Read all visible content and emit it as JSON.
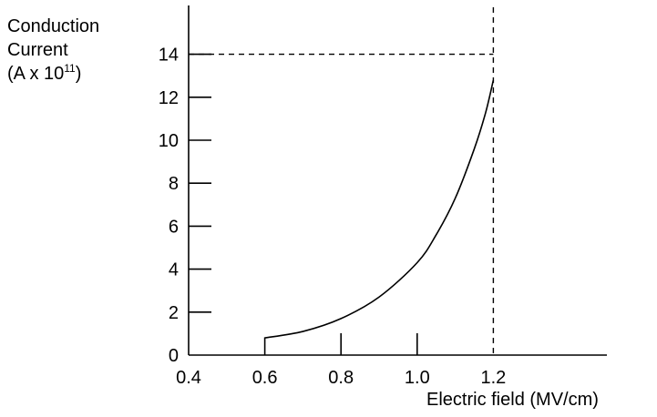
{
  "chart_data": {
    "type": "line",
    "ylabel_lines": [
      "Conduction",
      "Current"
    ],
    "ylabel_unit_prefix": "(A x 10",
    "ylabel_unit_exp": "11",
    "ylabel_unit_suffix": ")",
    "xlabel": "Electric field (MV/cm)",
    "x_ticks": [
      "0.4",
      "0.6",
      "0.8",
      "1.0",
      "1.2"
    ],
    "y_ticks": [
      "0",
      "2",
      "4",
      "6",
      "8",
      "10",
      "12",
      "14"
    ],
    "xlim": [
      0.4,
      1.5
    ],
    "ylim": [
      0,
      16
    ],
    "series": [
      {
        "x": [
          0.6,
          0.6,
          0.7,
          0.8,
          0.9,
          1.0,
          1.05,
          1.1,
          1.15,
          1.18,
          1.2
        ],
        "y": [
          0,
          0.8,
          1.1,
          1.7,
          2.7,
          4.3,
          5.6,
          7.3,
          9.6,
          11.3,
          12.8
        ]
      }
    ],
    "reference_lines": [
      {
        "orientation": "horizontal",
        "value": 14,
        "style": "dashed"
      },
      {
        "orientation": "vertical",
        "value": 1.2,
        "style": "dashed"
      }
    ],
    "grid": false,
    "legend": "none"
  }
}
